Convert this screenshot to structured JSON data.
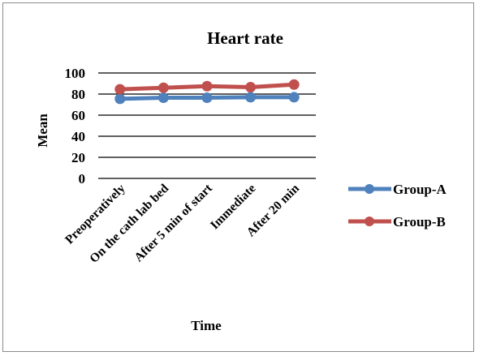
{
  "chart_data": {
    "type": "line",
    "title": "Heart rate",
    "xlabel": "Time",
    "ylabel": "Mean",
    "categories": [
      "Preoperatively",
      "On the cath lab bed",
      "After 5 min of start",
      "Immediate",
      "After 20 min"
    ],
    "ylim": [
      0,
      100
    ],
    "yticks": [
      0,
      20,
      40,
      60,
      80,
      100
    ],
    "grid": true,
    "legend_position": "right",
    "series": [
      {
        "name": "Group-A",
        "color": "#4f81bd",
        "values": [
          75.5,
          76.5,
          76.5,
          77.0,
          77.0
        ]
      },
      {
        "name": "Group-B",
        "color": "#c0504d",
        "values": [
          84.5,
          86.0,
          87.5,
          86.5,
          89.0
        ]
      }
    ]
  }
}
